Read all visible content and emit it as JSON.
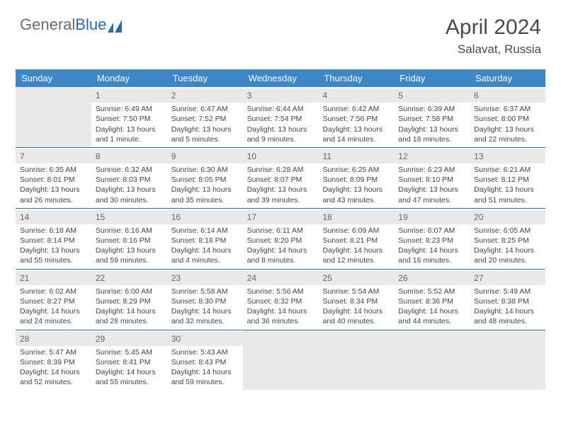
{
  "brand": {
    "part1": "General",
    "part2": "Blue"
  },
  "header": {
    "title": "April 2024",
    "location": "Salavat, Russia"
  },
  "colors": {
    "header_bg": "#3d87c7",
    "header_text": "#ffffff",
    "daynum_bg": "#e9e9e9",
    "cell_border": "#3d6a95",
    "body_text": "#444444",
    "logo_blue": "#2b6aa8"
  },
  "days_of_week": [
    "Sunday",
    "Monday",
    "Tuesday",
    "Wednesday",
    "Thursday",
    "Friday",
    "Saturday"
  ],
  "weeks": [
    [
      null,
      {
        "n": "1",
        "sr": "Sunrise: 6:49 AM",
        "ss": "Sunset: 7:50 PM",
        "d1": "Daylight: 13 hours",
        "d2": "and 1 minute."
      },
      {
        "n": "2",
        "sr": "Sunrise: 6:47 AM",
        "ss": "Sunset: 7:52 PM",
        "d1": "Daylight: 13 hours",
        "d2": "and 5 minutes."
      },
      {
        "n": "3",
        "sr": "Sunrise: 6:44 AM",
        "ss": "Sunset: 7:54 PM",
        "d1": "Daylight: 13 hours",
        "d2": "and 9 minutes."
      },
      {
        "n": "4",
        "sr": "Sunrise: 6:42 AM",
        "ss": "Sunset: 7:56 PM",
        "d1": "Daylight: 13 hours",
        "d2": "and 14 minutes."
      },
      {
        "n": "5",
        "sr": "Sunrise: 6:39 AM",
        "ss": "Sunset: 7:58 PM",
        "d1": "Daylight: 13 hours",
        "d2": "and 18 minutes."
      },
      {
        "n": "6",
        "sr": "Sunrise: 6:37 AM",
        "ss": "Sunset: 8:00 PM",
        "d1": "Daylight: 13 hours",
        "d2": "and 22 minutes."
      }
    ],
    [
      {
        "n": "7",
        "sr": "Sunrise: 6:35 AM",
        "ss": "Sunset: 8:01 PM",
        "d1": "Daylight: 13 hours",
        "d2": "and 26 minutes."
      },
      {
        "n": "8",
        "sr": "Sunrise: 6:32 AM",
        "ss": "Sunset: 8:03 PM",
        "d1": "Daylight: 13 hours",
        "d2": "and 30 minutes."
      },
      {
        "n": "9",
        "sr": "Sunrise: 6:30 AM",
        "ss": "Sunset: 8:05 PM",
        "d1": "Daylight: 13 hours",
        "d2": "and 35 minutes."
      },
      {
        "n": "10",
        "sr": "Sunrise: 6:28 AM",
        "ss": "Sunset: 8:07 PM",
        "d1": "Daylight: 13 hours",
        "d2": "and 39 minutes."
      },
      {
        "n": "11",
        "sr": "Sunrise: 6:25 AM",
        "ss": "Sunset: 8:09 PM",
        "d1": "Daylight: 13 hours",
        "d2": "and 43 minutes."
      },
      {
        "n": "12",
        "sr": "Sunrise: 6:23 AM",
        "ss": "Sunset: 8:10 PM",
        "d1": "Daylight: 13 hours",
        "d2": "and 47 minutes."
      },
      {
        "n": "13",
        "sr": "Sunrise: 6:21 AM",
        "ss": "Sunset: 8:12 PM",
        "d1": "Daylight: 13 hours",
        "d2": "and 51 minutes."
      }
    ],
    [
      {
        "n": "14",
        "sr": "Sunrise: 6:18 AM",
        "ss": "Sunset: 8:14 PM",
        "d1": "Daylight: 13 hours",
        "d2": "and 55 minutes."
      },
      {
        "n": "15",
        "sr": "Sunrise: 6:16 AM",
        "ss": "Sunset: 8:16 PM",
        "d1": "Daylight: 13 hours",
        "d2": "and 59 minutes."
      },
      {
        "n": "16",
        "sr": "Sunrise: 6:14 AM",
        "ss": "Sunset: 8:18 PM",
        "d1": "Daylight: 14 hours",
        "d2": "and 4 minutes."
      },
      {
        "n": "17",
        "sr": "Sunrise: 6:11 AM",
        "ss": "Sunset: 8:20 PM",
        "d1": "Daylight: 14 hours",
        "d2": "and 8 minutes."
      },
      {
        "n": "18",
        "sr": "Sunrise: 6:09 AM",
        "ss": "Sunset: 8:21 PM",
        "d1": "Daylight: 14 hours",
        "d2": "and 12 minutes."
      },
      {
        "n": "19",
        "sr": "Sunrise: 6:07 AM",
        "ss": "Sunset: 8:23 PM",
        "d1": "Daylight: 14 hours",
        "d2": "and 16 minutes."
      },
      {
        "n": "20",
        "sr": "Sunrise: 6:05 AM",
        "ss": "Sunset: 8:25 PM",
        "d1": "Daylight: 14 hours",
        "d2": "and 20 minutes."
      }
    ],
    [
      {
        "n": "21",
        "sr": "Sunrise: 6:02 AM",
        "ss": "Sunset: 8:27 PM",
        "d1": "Daylight: 14 hours",
        "d2": "and 24 minutes."
      },
      {
        "n": "22",
        "sr": "Sunrise: 6:00 AM",
        "ss": "Sunset: 8:29 PM",
        "d1": "Daylight: 14 hours",
        "d2": "and 28 minutes."
      },
      {
        "n": "23",
        "sr": "Sunrise: 5:58 AM",
        "ss": "Sunset: 8:30 PM",
        "d1": "Daylight: 14 hours",
        "d2": "and 32 minutes."
      },
      {
        "n": "24",
        "sr": "Sunrise: 5:56 AM",
        "ss": "Sunset: 8:32 PM",
        "d1": "Daylight: 14 hours",
        "d2": "and 36 minutes."
      },
      {
        "n": "25",
        "sr": "Sunrise: 5:54 AM",
        "ss": "Sunset: 8:34 PM",
        "d1": "Daylight: 14 hours",
        "d2": "and 40 minutes."
      },
      {
        "n": "26",
        "sr": "Sunrise: 5:52 AM",
        "ss": "Sunset: 8:36 PM",
        "d1": "Daylight: 14 hours",
        "d2": "and 44 minutes."
      },
      {
        "n": "27",
        "sr": "Sunrise: 5:49 AM",
        "ss": "Sunset: 8:38 PM",
        "d1": "Daylight: 14 hours",
        "d2": "and 48 minutes."
      }
    ],
    [
      {
        "n": "28",
        "sr": "Sunrise: 5:47 AM",
        "ss": "Sunset: 8:39 PM",
        "d1": "Daylight: 14 hours",
        "d2": "and 52 minutes."
      },
      {
        "n": "29",
        "sr": "Sunrise: 5:45 AM",
        "ss": "Sunset: 8:41 PM",
        "d1": "Daylight: 14 hours",
        "d2": "and 55 minutes."
      },
      {
        "n": "30",
        "sr": "Sunrise: 5:43 AM",
        "ss": "Sunset: 8:43 PM",
        "d1": "Daylight: 14 hours",
        "d2": "and 59 minutes."
      },
      null,
      null,
      null,
      null
    ]
  ]
}
